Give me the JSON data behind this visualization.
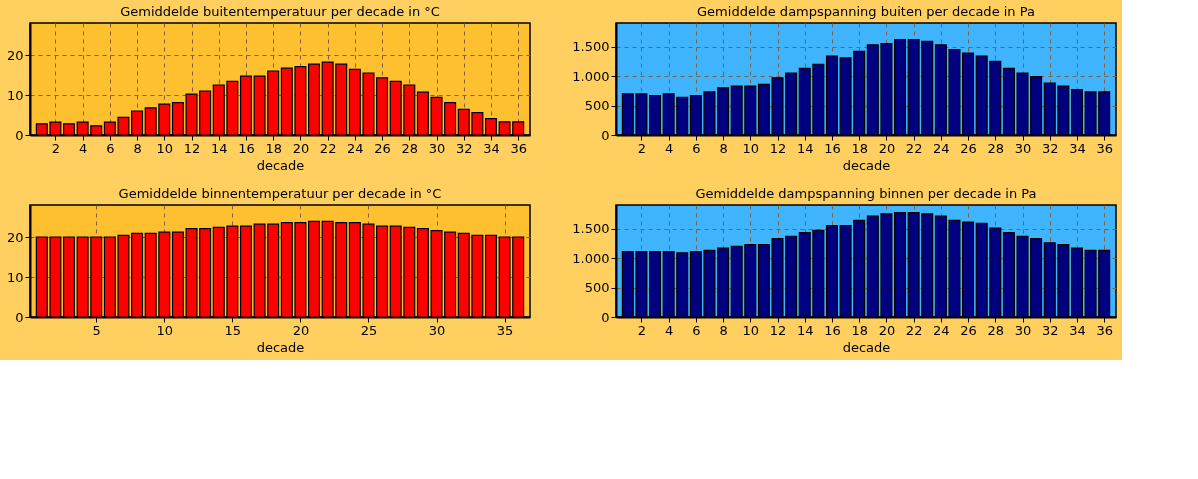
{
  "chart_data": [
    {
      "type": "bar",
      "title": "Gemiddelde buitentemperatuur  per decade in °C",
      "xlabel": "decade",
      "x": [
        1,
        2,
        3,
        4,
        5,
        6,
        7,
        8,
        9,
        10,
        11,
        12,
        13,
        14,
        15,
        16,
        17,
        18,
        19,
        20,
        21,
        22,
        23,
        24,
        25,
        26,
        27,
        28,
        29,
        30,
        31,
        32,
        33,
        34,
        35,
        36
      ],
      "values": [
        2.8,
        3.2,
        2.8,
        3.2,
        2.3,
        3.2,
        4.4,
        6.0,
        6.8,
        7.7,
        8.1,
        10.2,
        11.0,
        12.5,
        13.4,
        14.7,
        14.7,
        16.0,
        16.7,
        17.1,
        17.7,
        18.2,
        17.7,
        16.4,
        15.5,
        14.3,
        13.4,
        12.5,
        10.7,
        9.4,
        8.1,
        6.4,
        5.6,
        4.1,
        3.3,
        3.3
      ],
      "color": "#ff0000",
      "xlim": [
        0.5,
        36.5
      ],
      "xticks": [
        2,
        4,
        6,
        8,
        10,
        12,
        14,
        16,
        18,
        20,
        22,
        24,
        26,
        28,
        30,
        32,
        34,
        36
      ],
      "ylim": [
        0,
        28
      ],
      "yticks": [
        0,
        10,
        20
      ],
      "grid": true
    },
    {
      "type": "bar",
      "title": "Gemiddelde dampspanning buiten per decade  in Pa",
      "xlabel": "decade",
      "x": [
        1,
        2,
        3,
        4,
        5,
        6,
        7,
        8,
        9,
        10,
        11,
        12,
        13,
        14,
        15,
        16,
        17,
        18,
        19,
        20,
        21,
        22,
        23,
        24,
        25,
        26,
        27,
        28,
        29,
        30,
        31,
        32,
        33,
        34,
        35,
        36
      ],
      "values": [
        700,
        700,
        670,
        700,
        640,
        670,
        730,
        800,
        830,
        830,
        860,
        970,
        1050,
        1130,
        1200,
        1340,
        1310,
        1420,
        1530,
        1550,
        1620,
        1620,
        1590,
        1530,
        1450,
        1390,
        1340,
        1250,
        1130,
        1050,
        990,
        880,
        830,
        770,
        730,
        730
      ],
      "color": "#000080",
      "xlim": [
        0.5,
        36.5
      ],
      "xticks": [
        2,
        4,
        6,
        8,
        10,
        12,
        14,
        16,
        18,
        20,
        22,
        24,
        26,
        28,
        30,
        32,
        34,
        36
      ],
      "ylim": [
        0,
        1900
      ],
      "yticks": [
        0,
        500,
        {
          "value": 1000,
          "label": "1.000"
        },
        {
          "value": 1500,
          "label": "1.500"
        }
      ],
      "grid": true
    },
    {
      "type": "bar",
      "title": "Gemiddelde binnentemperatuur  per decade in °C",
      "xlabel": "decade",
      "x": [
        1,
        2,
        3,
        4,
        5,
        6,
        7,
        8,
        9,
        10,
        11,
        12,
        13,
        14,
        15,
        16,
        17,
        18,
        19,
        20,
        21,
        22,
        23,
        24,
        25,
        26,
        27,
        28,
        29,
        30,
        31,
        32,
        33,
        34,
        35,
        36
      ],
      "values": [
        20.0,
        20.0,
        20.0,
        20.0,
        20.0,
        20.0,
        20.4,
        20.9,
        20.9,
        21.2,
        21.2,
        22.1,
        22.1,
        22.4,
        22.7,
        22.7,
        23.2,
        23.2,
        23.6,
        23.6,
        23.9,
        23.9,
        23.6,
        23.6,
        23.2,
        22.7,
        22.7,
        22.4,
        22.1,
        21.6,
        21.2,
        20.9,
        20.4,
        20.4,
        20.0,
        20.0
      ],
      "color": "#ff0000",
      "xlim": [
        0.5,
        36.5
      ],
      "xticks": [
        5,
        10,
        15,
        20,
        25,
        30,
        35
      ],
      "ylim": [
        0,
        28
      ],
      "yticks": [
        0,
        10,
        20
      ],
      "grid": true
    },
    {
      "type": "bar",
      "title": "Gemiddelde dampspanning binnen per decade  in Pa",
      "xlabel": "decade",
      "x": [
        1,
        2,
        3,
        4,
        5,
        6,
        7,
        8,
        9,
        10,
        11,
        12,
        13,
        14,
        15,
        16,
        17,
        18,
        19,
        20,
        21,
        22,
        23,
        24,
        25,
        26,
        27,
        28,
        29,
        30,
        31,
        32,
        33,
        34,
        35,
        36
      ],
      "values": [
        1110,
        1110,
        1110,
        1110,
        1090,
        1110,
        1130,
        1170,
        1200,
        1230,
        1230,
        1330,
        1370,
        1430,
        1470,
        1550,
        1550,
        1640,
        1710,
        1750,
        1770,
        1770,
        1750,
        1710,
        1640,
        1610,
        1590,
        1510,
        1430,
        1370,
        1330,
        1260,
        1230,
        1170,
        1130,
        1130
      ],
      "color": "#000080",
      "xlim": [
        0.5,
        36.5
      ],
      "xticks": [
        2,
        4,
        6,
        8,
        10,
        12,
        14,
        16,
        18,
        20,
        22,
        24,
        26,
        28,
        30,
        32,
        34,
        36
      ],
      "ylim": [
        0,
        1900
      ],
      "yticks": [
        0,
        500,
        {
          "value": 1000,
          "label": "1.000"
        },
        {
          "value": 1500,
          "label": "1.500"
        }
      ],
      "grid": true
    }
  ]
}
